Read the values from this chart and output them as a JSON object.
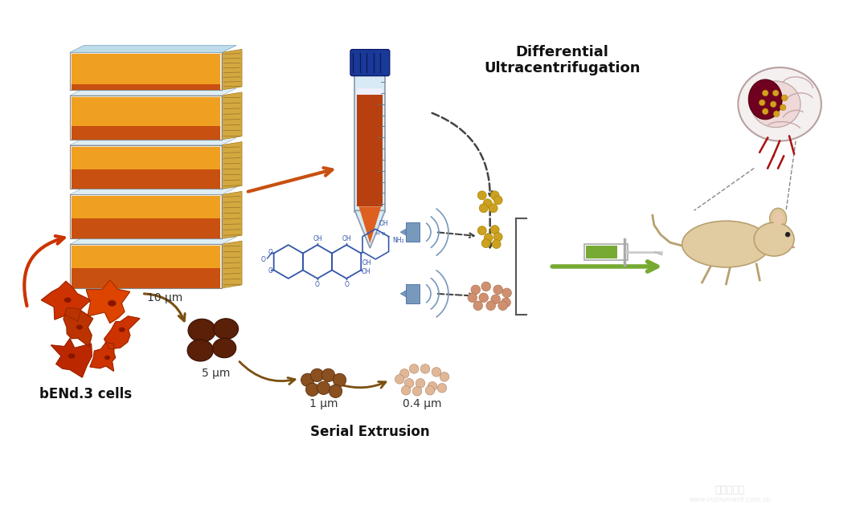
{
  "background_color": "#ffffff",
  "text_differential": "Differential\nUltracentrifugation",
  "text_serial": "Serial Extrusion",
  "text_bend": "bENd.3 cells",
  "text_5um": "5 μm",
  "text_10um": "10 μm",
  "text_1um": "1 μm",
  "text_04um": "0.4 μm",
  "flask_yellow": "#F0A020",
  "flask_orange": "#C85010",
  "flask_gold": "#C8A030",
  "flask_blue_top": "#C8DDE8",
  "flask_outline": "#888888",
  "tube_body": "#D8EAF5",
  "tube_liquid": "#B84010",
  "tube_cap": "#1A3A9A",
  "tube_outline": "#8899AA",
  "arrow_orange": "#C85010",
  "arrow_brown": "#7A5010",
  "dashed_color": "#444444",
  "cell_red": "#CC3300",
  "cell_dark_red": "#881500",
  "cell_orange": "#DD5522",
  "brown_dark": "#5A2008",
  "brown_mid": "#7A3510",
  "brown_light": "#A05020",
  "peach": "#D09070",
  "peach_light": "#E0B898",
  "gold": "#CCA020",
  "drug_blue": "#3355AA",
  "us_blue": "#7799BB",
  "inject_green": "#77AA33",
  "brain_pink": "#F0D0D0",
  "brain_maroon": "#700020",
  "mouse_tan": "#E0CCA0",
  "mouse_outline": "#B8A070",
  "watermark_color": "#DDDDDD"
}
